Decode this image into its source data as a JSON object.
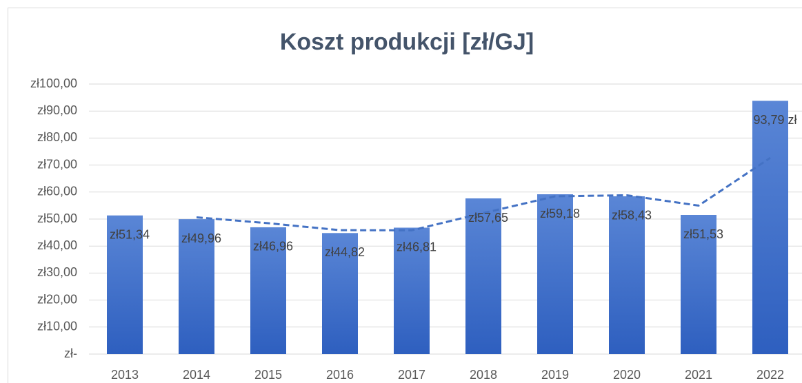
{
  "chart_data": {
    "type": "bar",
    "title": "Koszt produkcji [zł/GJ]",
    "categories": [
      "2013",
      "2014",
      "2015",
      "2016",
      "2017",
      "2018",
      "2019",
      "2020",
      "2021",
      "2022"
    ],
    "values": [
      51.34,
      49.96,
      46.96,
      44.82,
      46.81,
      57.65,
      59.18,
      58.43,
      51.53,
      93.79
    ],
    "value_labels": [
      "zł51,34",
      "zł49,96",
      "zł46,96",
      "zł44,82",
      "zł46,81",
      "zł57,65",
      "zł59,18",
      "zł58,43",
      "zł51,53",
      "93,79 zł"
    ],
    "color": "#4472c4",
    "trend": {
      "values": [
        null,
        50.65,
        48.46,
        45.89,
        45.82,
        52.23,
        58.42,
        58.81,
        54.98,
        72.66
      ],
      "color": "#4472c4",
      "dashed": true
    },
    "ylim": [
      0,
      100
    ],
    "yticks": [
      {
        "value": 0,
        "label": "zł-"
      },
      {
        "value": 10,
        "label": "zł10,00"
      },
      {
        "value": 20,
        "label": "zł20,00"
      },
      {
        "value": 30,
        "label": "zł30,00"
      },
      {
        "value": 40,
        "label": "zł40,00"
      },
      {
        "value": 50,
        "label": "zł50,00"
      },
      {
        "value": 60,
        "label": "zł60,00"
      },
      {
        "value": 70,
        "label": "zł70,00"
      },
      {
        "value": 80,
        "label": "zł80,00"
      },
      {
        "value": 90,
        "label": "zł90,00"
      },
      {
        "value": 100,
        "label": "zł100,00"
      }
    ],
    "grid": true
  }
}
